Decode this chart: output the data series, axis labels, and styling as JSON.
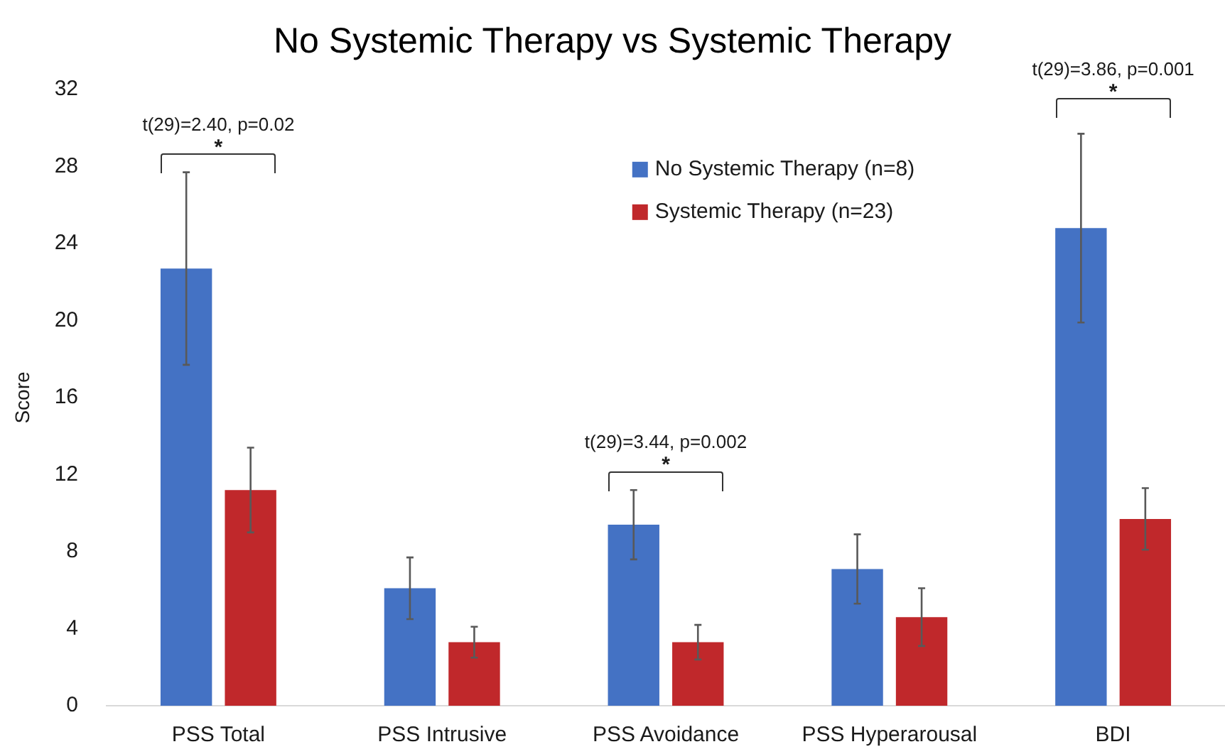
{
  "chart_data": {
    "type": "bar",
    "title": "No Systemic Therapy vs Systemic Therapy",
    "ylabel": "Score",
    "categories": [
      "PSS Total",
      "PSS Intrusive",
      "PSS Avoidance",
      "PSS Hyperarousal",
      "BDI"
    ],
    "series": [
      {
        "name": "No Systemic Therapy (n=8)",
        "color": "#4472c4",
        "values": [
          22.7,
          6.1,
          9.4,
          7.1,
          24.8
        ],
        "errors": [
          5.0,
          1.6,
          1.8,
          1.8,
          4.9
        ]
      },
      {
        "name": "Systemic Therapy (n=23)",
        "color": "#c0282b",
        "values": [
          11.2,
          3.3,
          3.3,
          4.6,
          9.7
        ],
        "errors": [
          2.2,
          0.8,
          0.9,
          1.5,
          1.6
        ]
      }
    ],
    "ylim": [
      0,
      32
    ],
    "yticks": [
      0,
      4,
      8,
      12,
      16,
      20,
      24,
      28,
      32
    ],
    "grid": false,
    "legend": "top right",
    "annotations": [
      "*",
      "t(29)=2.40, p=0.02",
      "*",
      "t(29)=3.44, p=0.002",
      "*",
      "t(29)=3.86, p=0.001"
    ]
  }
}
